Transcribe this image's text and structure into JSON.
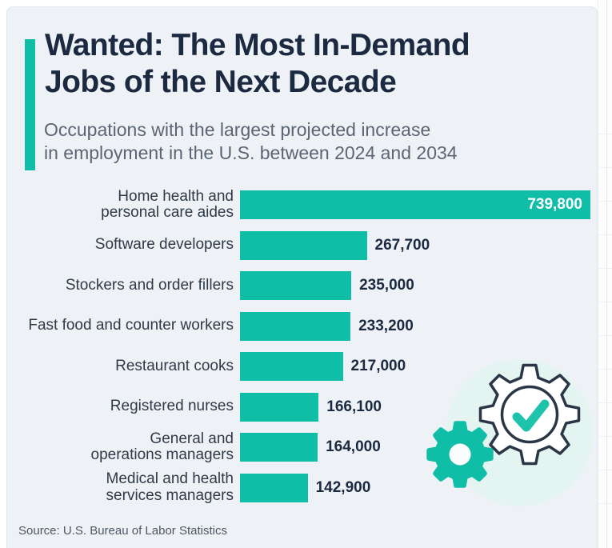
{
  "header": {
    "title_line1": "Wanted: The Most In-Demand",
    "title_line2": "Jobs of the Next Decade",
    "subtitle_line1": "Occupations with the largest projected increase",
    "subtitle_line2": "in employment in the U.S. between 2024 and 2034"
  },
  "chart_data": {
    "type": "bar",
    "orientation": "horizontal",
    "title": "Wanted: The Most In-Demand Jobs of the Next Decade",
    "subtitle": "Occupations with the largest projected increase in employment in the U.S. between 2024 and 2034",
    "categories": [
      "Home health and personal care aides",
      "Software developers",
      "Stockers and order fillers",
      "Fast food and counter workers",
      "Restaurant cooks",
      "Registered nurses",
      "General and operations managers",
      "Medical and health services managers"
    ],
    "label_lines": [
      [
        "Home health and",
        "personal care aides"
      ],
      [
        "Software developers"
      ],
      [
        "Stockers and order fillers"
      ],
      [
        "Fast food and counter workers"
      ],
      [
        "Restaurant cooks"
      ],
      [
        "Registered nurses"
      ],
      [
        "General and",
        "operations managers"
      ],
      [
        "Medical and health",
        "services managers"
      ]
    ],
    "values": [
      739800,
      267700,
      235000,
      233200,
      217000,
      166100,
      164000,
      142900
    ],
    "value_labels": [
      "739,800",
      "267,700",
      "235,000",
      "233,200",
      "217,000",
      "166,100",
      "164,000",
      "142,900"
    ],
    "xlim": [
      0,
      739800
    ],
    "grid": false,
    "legend": "none",
    "first_value_inside": true,
    "bar_color": "#10bda6"
  },
  "footer": {
    "source": "Source: U.S. Bureau of Labor Statistics"
  },
  "illustration": {
    "icons": [
      "gear-outline-with-checkmark",
      "gear-solid"
    ]
  },
  "colors": {
    "accent": "#10bda6",
    "check": "#1ec3ab",
    "title": "#1b2a40",
    "subtitle": "#5b6573",
    "label": "#2f3a47",
    "value": "#1b2940",
    "value_inside": "#ffffff",
    "source": "#4d5663",
    "card_bg": "#eef2f7",
    "card_border": "#e2e8f0",
    "circle_bg": "#e4f5f1",
    "gear_stroke": "#2a3646"
  }
}
